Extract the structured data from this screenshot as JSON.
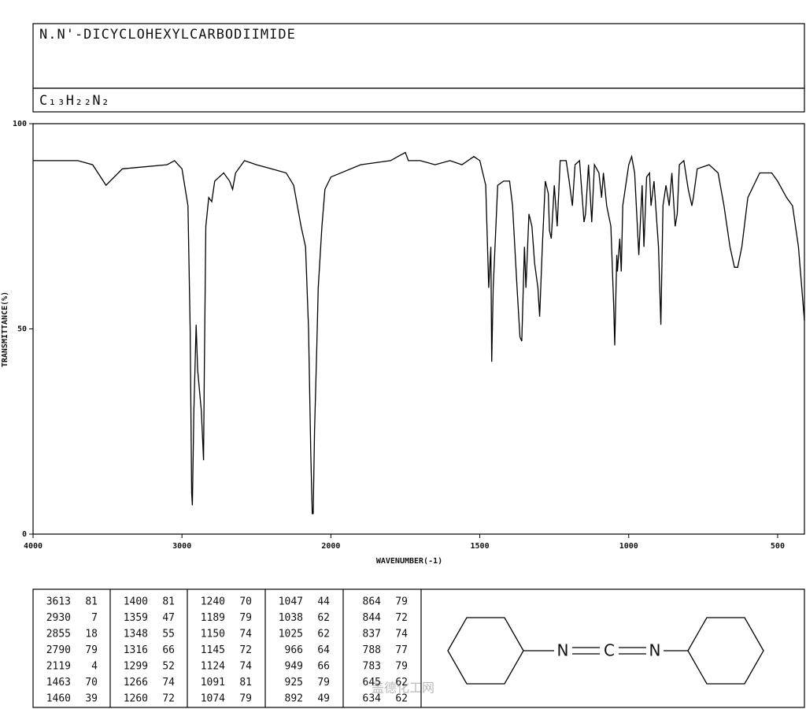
{
  "title": "N.N'-DICYCLOHEXYLCARBODIIMIDE",
  "formula": "C₁₃H₂₂N₂",
  "chart_data": {
    "type": "line",
    "xlabel": "WAVENUMBER(-1)",
    "ylabel": "TRANSMITTANCE(%)",
    "xlim": [
      4000,
      410
    ],
    "x_scale_change_at": 2000,
    "ylim": [
      0,
      100
    ],
    "xticks": [
      4000,
      3000,
      2000,
      1500,
      1000,
      500
    ],
    "yticks": [
      0,
      50,
      100
    ],
    "color": "#000000",
    "x": [
      4000,
      3800,
      3700,
      3600,
      3510,
      3400,
      3100,
      3050,
      3000,
      2960,
      2945,
      2935,
      2930,
      2920,
      2905,
      2895,
      2870,
      2855,
      2850,
      2840,
      2820,
      2800,
      2780,
      2720,
      2680,
      2660,
      2640,
      2580,
      2500,
      2400,
      2300,
      2250,
      2200,
      2170,
      2150,
      2135,
      2125,
      2119,
      2110,
      2095,
      2085,
      2060,
      2040,
      2000,
      1900,
      1800,
      1750,
      1740,
      1700,
      1650,
      1600,
      1560,
      1520,
      1500,
      1480,
      1470,
      1463,
      1460,
      1455,
      1440,
      1420,
      1400,
      1390,
      1375,
      1365,
      1359,
      1350,
      1345,
      1335,
      1325,
      1316,
      1305,
      1299,
      1290,
      1280,
      1270,
      1266,
      1260,
      1250,
      1240,
      1230,
      1210,
      1200,
      1189,
      1180,
      1165,
      1150,
      1145,
      1135,
      1124,
      1115,
      1100,
      1091,
      1085,
      1074,
      1060,
      1050,
      1047,
      1040,
      1038,
      1030,
      1025,
      1020,
      1000,
      990,
      980,
      966,
      955,
      949,
      940,
      930,
      925,
      915,
      900,
      892,
      885,
      875,
      864,
      855,
      844,
      837,
      830,
      815,
      800,
      788,
      783,
      770,
      730,
      700,
      680,
      660,
      645,
      634,
      620,
      600,
      560,
      520,
      500,
      470,
      450,
      430,
      410
    ],
    "values": [
      91,
      91,
      91,
      90,
      85,
      89,
      90,
      91,
      89,
      80,
      50,
      10,
      7,
      30,
      51,
      40,
      30,
      18,
      40,
      75,
      82,
      81,
      86,
      88,
      86,
      84,
      88,
      91,
      90,
      89,
      88,
      85,
      75,
      70,
      50,
      20,
      5,
      5,
      25,
      45,
      60,
      75,
      84,
      87,
      90,
      91,
      93,
      91,
      91,
      90,
      91,
      90,
      92,
      91,
      85,
      60,
      70,
      42,
      60,
      85,
      86,
      86,
      80,
      60,
      48,
      47,
      70,
      60,
      78,
      75,
      66,
      60,
      53,
      70,
      86,
      83,
      74,
      72,
      85,
      75,
      91,
      91,
      86,
      80,
      90,
      91,
      76,
      78,
      90,
      76,
      90,
      88,
      82,
      88,
      80,
      75,
      55,
      46,
      68,
      64,
      72,
      64,
      80,
      90,
      92,
      88,
      68,
      85,
      70,
      87,
      88,
      80,
      86,
      70,
      51,
      80,
      85,
      80,
      88,
      75,
      78,
      90,
      91,
      84,
      80,
      82,
      89,
      90,
      88,
      80,
      70,
      65,
      65,
      70,
      82,
      88,
      88,
      86,
      82,
      80,
      70,
      52
    ]
  },
  "peak_table": [
    [
      [
        3613,
        81
      ],
      [
        2930,
        7
      ],
      [
        2855,
        18
      ],
      [
        2790,
        79
      ],
      [
        2119,
        4
      ],
      [
        1463,
        70
      ],
      [
        1460,
        39
      ]
    ],
    [
      [
        1400,
        81
      ],
      [
        1359,
        47
      ],
      [
        1348,
        55
      ],
      [
        1316,
        66
      ],
      [
        1299,
        52
      ],
      [
        1266,
        74
      ],
      [
        1260,
        72
      ]
    ],
    [
      [
        1240,
        70
      ],
      [
        1189,
        79
      ],
      [
        1150,
        74
      ],
      [
        1145,
        72
      ],
      [
        1124,
        74
      ],
      [
        1091,
        81
      ],
      [
        1074,
        79
      ]
    ],
    [
      [
        1047,
        44
      ],
      [
        1038,
        62
      ],
      [
        1025,
        62
      ],
      [
        966,
        64
      ],
      [
        949,
        66
      ],
      [
        925,
        79
      ],
      [
        892,
        49
      ]
    ],
    [
      [
        864,
        79
      ],
      [
        844,
        72
      ],
      [
        837,
        74
      ],
      [
        788,
        77
      ],
      [
        783,
        79
      ],
      [
        645,
        62
      ],
      [
        634,
        62
      ]
    ]
  ],
  "structure": {
    "atoms": [
      "N",
      "C",
      "N"
    ]
  },
  "watermark": "盖德化工网"
}
